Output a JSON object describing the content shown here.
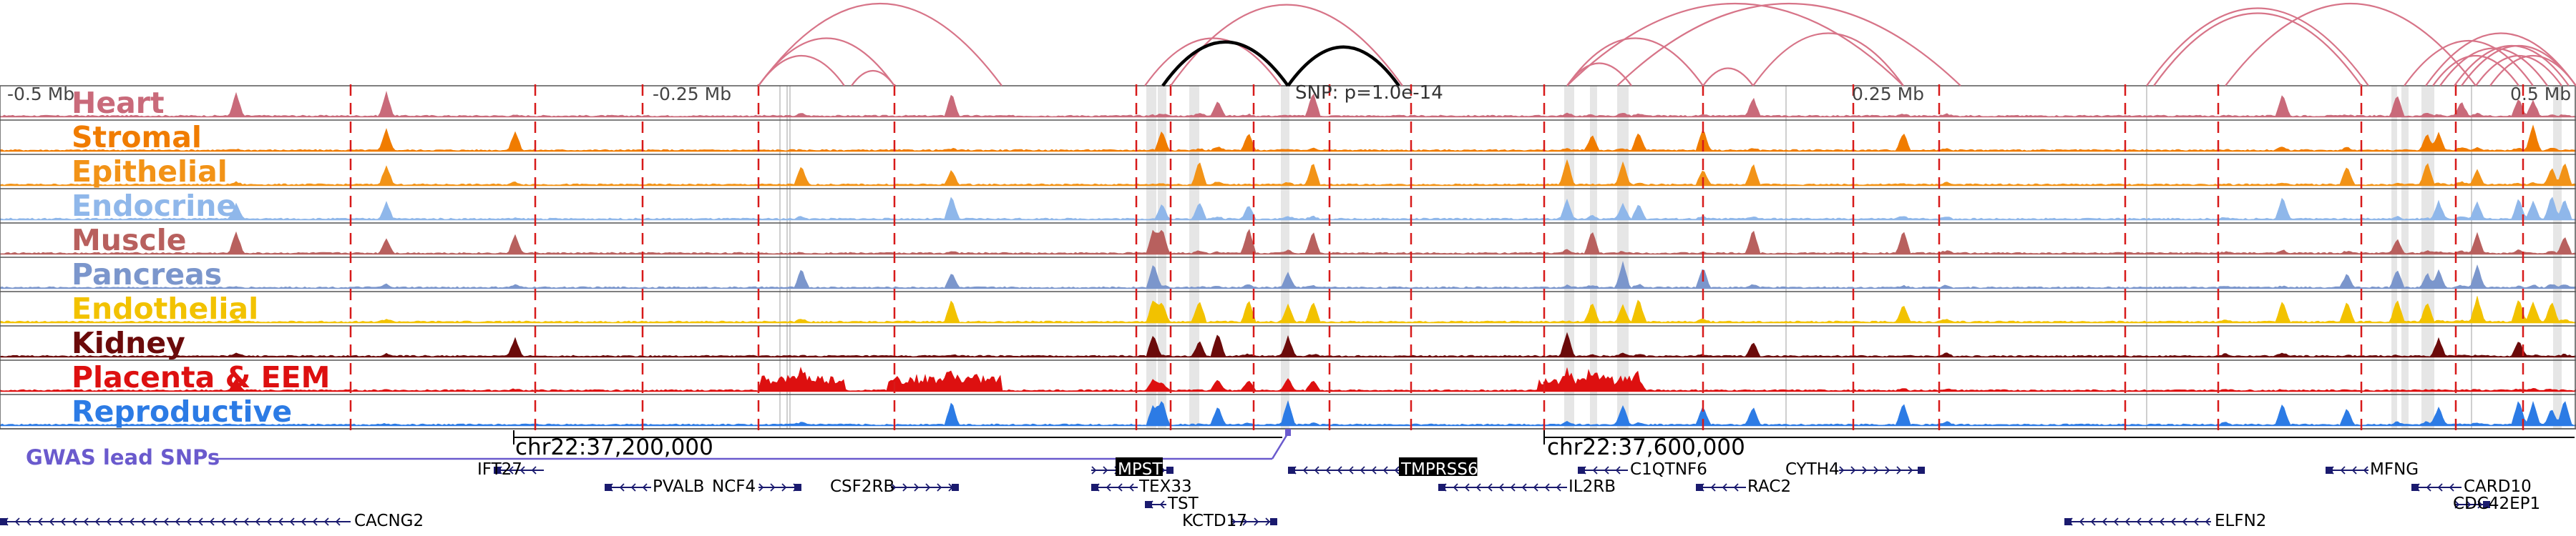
{
  "axis": {
    "ticks": [
      {
        "label": "-0.5 Mb",
        "pos": -0.5
      },
      {
        "label": "-0.25 Mb",
        "pos": -0.25
      },
      {
        "label": "0.25 Mb",
        "pos": 0.25
      },
      {
        "label": "0.5 Mb",
        "pos": 0.5
      }
    ]
  },
  "snp_label": "SNP: p=1.0e-14",
  "tracks": [
    {
      "name": "Heart",
      "color": "#c96a7a"
    },
    {
      "name": "Stromal",
      "color": "#f07c00"
    },
    {
      "name": "Epithelial",
      "color": "#f29317"
    },
    {
      "name": "Endocrine",
      "color": "#8fb7ea"
    },
    {
      "name": "Muscle",
      "color": "#b8605e"
    },
    {
      "name": "Pancreas",
      "color": "#7b96cc"
    },
    {
      "name": "Endothelial",
      "color": "#f2c200"
    },
    {
      "name": "Kidney",
      "color": "#6b0a0a"
    },
    {
      "name": "Placenta & EEM",
      "color": "#dd1010"
    },
    {
      "name": "Reproductive",
      "color": "#2c7be5"
    }
  ],
  "gwas_label": "GWAS lead SNPs",
  "gwas_color": "#6a5acd",
  "link_color": "#d77488",
  "highlight_link_color": "#000000",
  "cre_line_color": "#d71a1a",
  "coordinates": [
    {
      "label": "chr22:37,200,000"
    },
    {
      "label": "chr22:37,600,000"
    }
  ],
  "genes": [
    {
      "name": "IFT27",
      "strand": "-"
    },
    {
      "name": "NCF4",
      "strand": "+"
    },
    {
      "name": "PVALB",
      "strand": "-"
    },
    {
      "name": "CSF2RB",
      "strand": "+"
    },
    {
      "name": "CACNG2",
      "strand": "-"
    },
    {
      "name": "MPST",
      "strand": "+",
      "highlight": true
    },
    {
      "name": "TEX33",
      "strand": "-"
    },
    {
      "name": "TST",
      "strand": "-"
    },
    {
      "name": "KCTD17",
      "strand": "+"
    },
    {
      "name": "TMPRSS6",
      "strand": "-",
      "highlight": true
    },
    {
      "name": "IL2RB",
      "strand": "-"
    },
    {
      "name": "C1QTNF6",
      "strand": "-"
    },
    {
      "name": "RAC2",
      "strand": "-"
    },
    {
      "name": "CYTH4",
      "strand": "+"
    },
    {
      "name": "MFNG",
      "strand": "-"
    },
    {
      "name": "CARD10",
      "strand": "-"
    },
    {
      "name": "CDC42EP1",
      "strand": "+"
    },
    {
      "name": "ELFN2",
      "strand": "-"
    }
  ]
}
